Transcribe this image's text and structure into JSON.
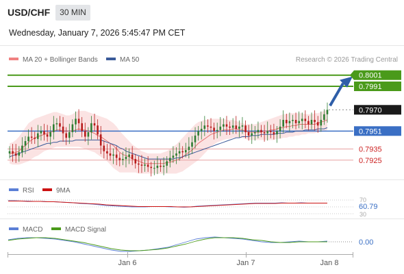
{
  "header": {
    "symbol": "USD/CHF",
    "timeframe": "30 MIN",
    "datetime": "Wednesday, January 7, 2026 5:45:47 PM CET"
  },
  "legend": {
    "ma20": "MA 20 + Bollinger Bands",
    "ma50": "MA 50",
    "source": "Research © 2026 Trading Central"
  },
  "colors": {
    "resistance": "#4a9a1a",
    "pivot": "#3a6fc4",
    "support": "#cc2222",
    "candle_up": "#2e7d32",
    "candle_down": "#b71c1c",
    "bollinger_fill": "#fbe3e3",
    "ma20": "#e57373",
    "ma50": "#3a5a99",
    "arrow": "#2e5ea8"
  },
  "chart_data": [
    {
      "type": "candlestick",
      "ylim": [
        0.7912,
        0.801
      ],
      "x_labels": [
        "Jan 6",
        "Jan 7",
        "Jan 8"
      ],
      "levels": [
        {
          "label": "0.8001",
          "value": 0.8001,
          "kind": "resistance"
        },
        {
          "label": "0.7991",
          "value": 0.7991,
          "kind": "resistance"
        },
        {
          "label": "0.7970",
          "value": 0.797,
          "kind": "last"
        },
        {
          "label": "0.7951",
          "value": 0.7951,
          "kind": "pivot"
        },
        {
          "label": "0.7935",
          "value": 0.7935,
          "kind": "support"
        },
        {
          "label": "0.7925",
          "value": 0.7925,
          "kind": "support"
        }
      ],
      "closes": [
        0.7933,
        0.7931,
        0.7929,
        0.7932,
        0.7938,
        0.7942,
        0.7946,
        0.7945,
        0.7944,
        0.7949,
        0.7951,
        0.7948,
        0.7946,
        0.795,
        0.7957,
        0.7958,
        0.7955,
        0.7949,
        0.7945,
        0.795,
        0.7957,
        0.7962,
        0.7958,
        0.7951,
        0.7946,
        0.795,
        0.7958,
        0.7956,
        0.7948,
        0.7938,
        0.7933,
        0.7931,
        0.7929,
        0.793,
        0.7927,
        0.7925,
        0.7926,
        0.7928,
        0.793,
        0.7926,
        0.7922,
        0.7921,
        0.792,
        0.7921,
        0.7919,
        0.7918,
        0.7918,
        0.792,
        0.7919,
        0.792,
        0.7924,
        0.7927,
        0.7929,
        0.7931,
        0.7933,
        0.7932,
        0.7934,
        0.7937,
        0.7941,
        0.7947,
        0.7951,
        0.7953,
        0.7956,
        0.7955,
        0.7954,
        0.7951,
        0.7952,
        0.7955,
        0.7957,
        0.7955,
        0.7954,
        0.7956,
        0.7953,
        0.7955,
        0.7956,
        0.795,
        0.7947,
        0.7949,
        0.795,
        0.7952,
        0.795,
        0.7949,
        0.7951,
        0.795,
        0.7948,
        0.7951,
        0.7955,
        0.7961,
        0.7958,
        0.796,
        0.7961,
        0.7958,
        0.796,
        0.7962,
        0.796,
        0.7957,
        0.7961,
        0.7959,
        0.7956,
        0.7961,
        0.7966,
        0.797
      ],
      "bb_upper": [
        0.794,
        0.7941,
        0.7943,
        0.7946,
        0.795,
        0.7954,
        0.7958,
        0.796,
        0.7962,
        0.7963,
        0.7964,
        0.7965,
        0.7966,
        0.7967,
        0.7968,
        0.7968,
        0.7967,
        0.7966,
        0.7965,
        0.7965,
        0.7966,
        0.7968,
        0.7969,
        0.7969,
        0.7969,
        0.7968,
        0.7967,
        0.7966,
        0.7965,
        0.7964,
        0.7963,
        0.7962,
        0.796,
        0.7958,
        0.7955,
        0.7951,
        0.7948,
        0.7945,
        0.7942,
        0.7939,
        0.7937,
        0.7935,
        0.7933,
        0.7932,
        0.7931,
        0.7931,
        0.7931,
        0.7931,
        0.7931,
        0.7932,
        0.7933,
        0.7935,
        0.7937,
        0.7939,
        0.7942,
        0.7945,
        0.7948,
        0.7951,
        0.7954,
        0.7957,
        0.7959,
        0.796,
        0.7961,
        0.7961,
        0.7962,
        0.7962,
        0.7962,
        0.7962,
        0.7962,
        0.7961,
        0.7961,
        0.7961,
        0.796,
        0.7959,
        0.7958,
        0.7957,
        0.7957,
        0.7957,
        0.7957,
        0.7958,
        0.7959,
        0.796,
        0.7961,
        0.7962,
        0.7963,
        0.7964,
        0.7965,
        0.7966,
        0.7966,
        0.7967,
        0.7967,
        0.7967,
        0.7967,
        0.7967,
        0.7966,
        0.7966,
        0.7966,
        0.7967,
        0.7967,
        0.7968,
        0.7969,
        0.797
      ],
      "bb_lower": [
        0.7922,
        0.7921,
        0.7921,
        0.7921,
        0.7922,
        0.7923,
        0.7924,
        0.7926,
        0.7928,
        0.7929,
        0.7931,
        0.7933,
        0.7934,
        0.7935,
        0.7936,
        0.7937,
        0.7937,
        0.7937,
        0.7937,
        0.7937,
        0.7937,
        0.7937,
        0.7937,
        0.7936,
        0.7935,
        0.7934,
        0.7933,
        0.7932,
        0.793,
        0.7928,
        0.7926,
        0.7924,
        0.7921,
        0.7918,
        0.7916,
        0.7914,
        0.7914,
        0.7914,
        0.7914,
        0.7914,
        0.7914,
        0.7913,
        0.7913,
        0.7913,
        0.7913,
        0.7913,
        0.7913,
        0.7913,
        0.7913,
        0.7913,
        0.7913,
        0.7913,
        0.7913,
        0.7913,
        0.7914,
        0.7915,
        0.7917,
        0.7919,
        0.7921,
        0.7923,
        0.7925,
        0.7928,
        0.7931,
        0.7934,
        0.7937,
        0.7939,
        0.7941,
        0.7942,
        0.7943,
        0.7944,
        0.7944,
        0.7945,
        0.7945,
        0.7945,
        0.7945,
        0.7944,
        0.7943,
        0.7943,
        0.7943,
        0.7943,
        0.7943,
        0.7943,
        0.7943,
        0.7943,
        0.7943,
        0.7944,
        0.7944,
        0.7945,
        0.7945,
        0.7946,
        0.7946,
        0.7947,
        0.7947,
        0.7948,
        0.7948,
        0.7949,
        0.7949,
        0.7949,
        0.795,
        0.795,
        0.7951,
        0.7952
      ],
      "ma20": [
        0.7931,
        0.7931,
        0.7932,
        0.7933,
        0.7936,
        0.7938,
        0.7941,
        0.7943,
        0.7945,
        0.7946,
        0.7947,
        0.7948,
        0.7949,
        0.795,
        0.7951,
        0.7952,
        0.7952,
        0.7951,
        0.7951,
        0.7951,
        0.7951,
        0.7952,
        0.7953,
        0.7952,
        0.7952,
        0.7951,
        0.795,
        0.7949,
        0.7947,
        0.7946,
        0.7944,
        0.7942,
        0.794,
        0.7938,
        0.7935,
        0.7932,
        0.793,
        0.7929,
        0.7928,
        0.7926,
        0.7925,
        0.7924,
        0.7923,
        0.7922,
        0.7922,
        0.7922,
        0.7922,
        0.7922,
        0.7922,
        0.7922,
        0.7923,
        0.7923,
        0.7924,
        0.7925,
        0.7926,
        0.7928,
        0.793,
        0.7932,
        0.7934,
        0.7937,
        0.794,
        0.7942,
        0.7944,
        0.7946,
        0.7948,
        0.7949,
        0.795,
        0.7951,
        0.7952,
        0.7952,
        0.7952,
        0.7953,
        0.7953,
        0.7952,
        0.7952,
        0.7951,
        0.795,
        0.795,
        0.795,
        0.795,
        0.795,
        0.7951,
        0.7951,
        0.7952,
        0.7952,
        0.7953,
        0.7954,
        0.7954,
        0.7955,
        0.7955,
        0.7956,
        0.7956,
        0.7957,
        0.7957,
        0.7957,
        0.7957,
        0.7957,
        0.7957,
        0.7958,
        0.7959,
        0.796,
        0.7961
      ],
      "ma50": [
        0.7928,
        0.7929,
        0.793,
        0.7931,
        0.7932,
        0.7933,
        0.7934,
        0.7935,
        0.7936,
        0.7937,
        0.7938,
        0.7939,
        0.794,
        0.794,
        0.7941,
        0.7941,
        0.7942,
        0.7942,
        0.7942,
        0.7942,
        0.7942,
        0.7943,
        0.7943,
        0.7943,
        0.7943,
        0.7943,
        0.7943,
        0.7943,
        0.7943,
        0.7943,
        0.7942,
        0.7941,
        0.794,
        0.7939,
        0.7938,
        0.7936,
        0.7935,
        0.7933,
        0.7932,
        0.7931,
        0.793,
        0.7929,
        0.7928,
        0.7927,
        0.7926,
        0.7926,
        0.7926,
        0.7926,
        0.7926,
        0.7926,
        0.7926,
        0.7926,
        0.7926,
        0.7927,
        0.7927,
        0.7928,
        0.7929,
        0.793,
        0.7931,
        0.7932,
        0.7933,
        0.7934,
        0.7935,
        0.7936,
        0.7937,
        0.7938,
        0.7939,
        0.794,
        0.7941,
        0.7942,
        0.7943,
        0.7944,
        0.7945,
        0.7945,
        0.7946,
        0.7946,
        0.7946,
        0.7947,
        0.7947,
        0.7947,
        0.7948,
        0.7948,
        0.7948,
        0.7948,
        0.7948,
        0.7949,
        0.7949,
        0.7949,
        0.795,
        0.795,
        0.795,
        0.7951,
        0.7951,
        0.7951,
        0.7952,
        0.7952,
        0.7952,
        0.7952,
        0.7953,
        0.7953,
        0.7953,
        0.7954
      ]
    },
    {
      "type": "line",
      "legend": [
        "RSI",
        "9MA"
      ],
      "ylim": [
        30,
        70
      ],
      "tick_labels": [
        "70",
        "30"
      ],
      "value_label": "60.79",
      "series": [
        {
          "name": "RSI",
          "values": [
            68,
            68,
            67,
            67,
            66,
            66,
            65,
            65,
            64,
            63,
            62,
            60,
            59,
            58,
            56,
            54,
            53,
            52,
            51,
            50,
            50,
            50,
            51,
            51,
            51,
            50,
            50,
            49,
            50,
            52,
            53,
            54,
            55,
            56,
            57,
            58,
            59,
            60,
            61,
            61,
            61,
            61,
            62,
            61,
            61,
            62,
            61,
            61,
            61,
            61
          ]
        },
        {
          "name": "9MA",
          "values": [
            67,
            67,
            67,
            66,
            66,
            66,
            65,
            65,
            64,
            63,
            62,
            61,
            60,
            59,
            58,
            56,
            55,
            54,
            53,
            52,
            51,
            51,
            51,
            51,
            51,
            51,
            50,
            50,
            50,
            51,
            52,
            53,
            54,
            55,
            56,
            57,
            58,
            59,
            60,
            60,
            60,
            60,
            61,
            61,
            61,
            61,
            61,
            61,
            61,
            61
          ]
        }
      ]
    },
    {
      "type": "line",
      "legend": [
        "MACD",
        "MACD Signal"
      ],
      "value_label": "0.00",
      "series": [
        {
          "name": "MACD",
          "values": [
            0.0003,
            0.0005,
            0.0006,
            0.0006,
            0.0005,
            0.0004,
            0.0002,
            0.0,
            -0.0003,
            -0.0006,
            -0.0009,
            -0.0012,
            -0.0014,
            -0.0014,
            -0.0013,
            -0.0012,
            -0.001,
            -0.0008,
            -0.0004,
            0.0,
            0.0004,
            0.0006,
            0.0007,
            0.0006,
            0.0005,
            0.0004,
            0.0002,
            0.0,
            -0.0001,
            -0.0001,
            0.0,
            0.0001,
            0.0,
            0.0,
            0.0001
          ]
        },
        {
          "name": "MACD Signal",
          "values": [
            0.0002,
            0.0004,
            0.0005,
            0.0006,
            0.0006,
            0.0005,
            0.0003,
            0.0001,
            -0.0001,
            -0.0004,
            -0.0007,
            -0.001,
            -0.0012,
            -0.0013,
            -0.0013,
            -0.0012,
            -0.0011,
            -0.0009,
            -0.0006,
            -0.0003,
            0.0001,
            0.0004,
            0.0006,
            0.0006,
            0.0006,
            0.0005,
            0.0003,
            0.0002,
            0.0,
            -0.0001,
            -0.0001,
            0.0,
            0.0,
            0.0,
            0.0
          ]
        }
      ]
    }
  ]
}
